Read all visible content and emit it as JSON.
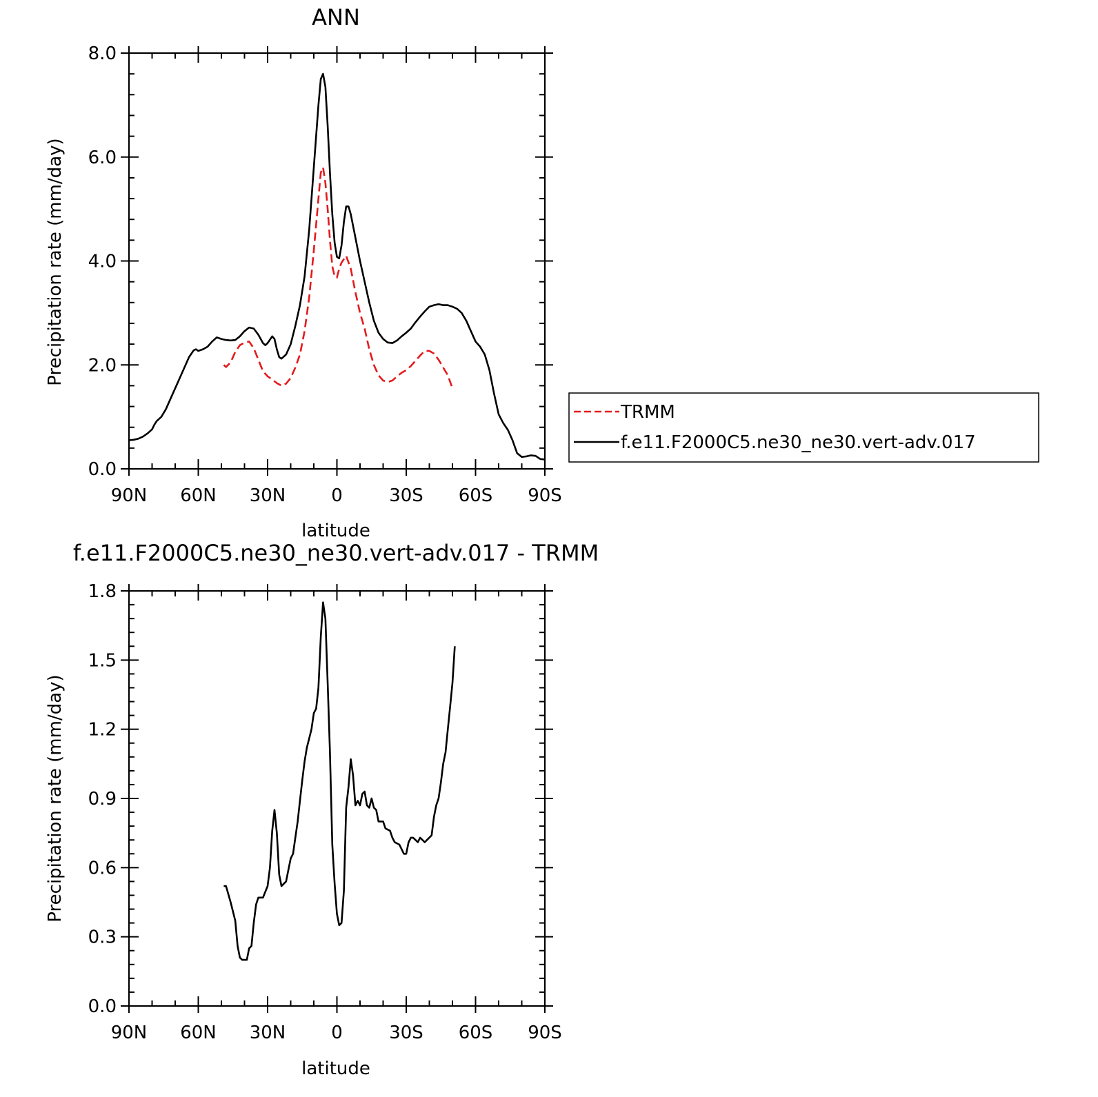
{
  "chart_data": [
    {
      "type": "line",
      "title": "ANN",
      "xlabel": "latitude",
      "ylabel": "Precipitation rate (mm/day)",
      "xlim": [
        90,
        -90
      ],
      "ylim": [
        0,
        8
      ],
      "x_ticks": [
        {
          "value": 90,
          "label": "90N"
        },
        {
          "value": 60,
          "label": "60N"
        },
        {
          "value": 30,
          "label": "30N"
        },
        {
          "value": 0,
          "label": "0"
        },
        {
          "value": -30,
          "label": "30S"
        },
        {
          "value": -60,
          "label": "60S"
        },
        {
          "value": -90,
          "label": "90S"
        }
      ],
      "y_ticks": [
        {
          "value": 0,
          "label": "0.0"
        },
        {
          "value": 2,
          "label": "2.0"
        },
        {
          "value": 4,
          "label": "4.0"
        },
        {
          "value": 6,
          "label": "6.0"
        },
        {
          "value": 8,
          "label": "8.0"
        }
      ],
      "legend": {
        "placement": "right"
      },
      "series": [
        {
          "name": "TRMM",
          "color": "#e41a1c",
          "dash": true,
          "points": [
            [
              49,
              2.0
            ],
            [
              48,
              1.96
            ],
            [
              46,
              2.05
            ],
            [
              44,
              2.25
            ],
            [
              42,
              2.38
            ],
            [
              40,
              2.43
            ],
            [
              38,
              2.45
            ],
            [
              36,
              2.32
            ],
            [
              34,
              2.1
            ],
            [
              32,
              1.88
            ],
            [
              30,
              1.78
            ],
            [
              28,
              1.72
            ],
            [
              26,
              1.65
            ],
            [
              24,
              1.6
            ],
            [
              22,
              1.64
            ],
            [
              20,
              1.75
            ],
            [
              18,
              1.95
            ],
            [
              16,
              2.2
            ],
            [
              14,
              2.65
            ],
            [
              12,
              3.3
            ],
            [
              10,
              4.2
            ],
            [
              8,
              5.2
            ],
            [
              7,
              5.7
            ],
            [
              6,
              5.8
            ],
            [
              5,
              5.5
            ],
            [
              4,
              5.0
            ],
            [
              3,
              4.4
            ],
            [
              2,
              3.9
            ],
            [
              1,
              3.7
            ],
            [
              0,
              3.68
            ],
            [
              -1,
              3.85
            ],
            [
              -2,
              3.97
            ],
            [
              -4,
              4.1
            ],
            [
              -6,
              3.85
            ],
            [
              -8,
              3.4
            ],
            [
              -10,
              3.0
            ],
            [
              -12,
              2.7
            ],
            [
              -14,
              2.3
            ],
            [
              -16,
              2.0
            ],
            [
              -18,
              1.8
            ],
            [
              -20,
              1.7
            ],
            [
              -22,
              1.67
            ],
            [
              -24,
              1.7
            ],
            [
              -26,
              1.78
            ],
            [
              -28,
              1.85
            ],
            [
              -30,
              1.9
            ],
            [
              -32,
              1.98
            ],
            [
              -34,
              2.08
            ],
            [
              -36,
              2.18
            ],
            [
              -38,
              2.27
            ],
            [
              -40,
              2.27
            ],
            [
              -42,
              2.22
            ],
            [
              -44,
              2.1
            ],
            [
              -46,
              1.95
            ],
            [
              -48,
              1.8
            ],
            [
              -50,
              1.55
            ]
          ]
        },
        {
          "name": "f.e11.F2000C5.ne30_ne30.vert-adv.017",
          "color": "#000000",
          "dash": false,
          "points": [
            [
              90,
              0.55
            ],
            [
              88,
              0.56
            ],
            [
              86,
              0.58
            ],
            [
              84,
              0.62
            ],
            [
              82,
              0.68
            ],
            [
              80,
              0.76
            ],
            [
              79,
              0.85
            ],
            [
              78,
              0.92
            ],
            [
              76,
              1.0
            ],
            [
              74,
              1.15
            ],
            [
              72,
              1.35
            ],
            [
              70,
              1.55
            ],
            [
              68,
              1.75
            ],
            [
              66,
              1.95
            ],
            [
              64,
              2.15
            ],
            [
              62,
              2.28
            ],
            [
              61,
              2.3
            ],
            [
              60,
              2.27
            ],
            [
              58,
              2.3
            ],
            [
              56,
              2.35
            ],
            [
              54,
              2.45
            ],
            [
              52,
              2.53
            ],
            [
              50,
              2.5
            ],
            [
              48,
              2.48
            ],
            [
              46,
              2.47
            ],
            [
              44,
              2.48
            ],
            [
              42,
              2.55
            ],
            [
              40,
              2.65
            ],
            [
              38,
              2.72
            ],
            [
              36,
              2.7
            ],
            [
              34,
              2.58
            ],
            [
              32,
              2.42
            ],
            [
              31,
              2.38
            ],
            [
              30,
              2.42
            ],
            [
              28,
              2.55
            ],
            [
              27,
              2.5
            ],
            [
              26,
              2.3
            ],
            [
              25,
              2.15
            ],
            [
              24,
              2.12
            ],
            [
              22,
              2.2
            ],
            [
              20,
              2.4
            ],
            [
              18,
              2.75
            ],
            [
              16,
              3.15
            ],
            [
              14,
              3.7
            ],
            [
              12,
              4.6
            ],
            [
              10,
              5.8
            ],
            [
              8,
              7.0
            ],
            [
              7,
              7.5
            ],
            [
              6,
              7.6
            ],
            [
              5,
              7.35
            ],
            [
              4,
              6.6
            ],
            [
              3,
              5.7
            ],
            [
              2,
              4.9
            ],
            [
              1,
              4.35
            ],
            [
              0,
              4.08
            ],
            [
              -1,
              4.05
            ],
            [
              -2,
              4.3
            ],
            [
              -3,
              4.75
            ],
            [
              -4,
              5.05
            ],
            [
              -5,
              5.05
            ],
            [
              -6,
              4.9
            ],
            [
              -8,
              4.45
            ],
            [
              -10,
              4.0
            ],
            [
              -12,
              3.6
            ],
            [
              -14,
              3.2
            ],
            [
              -16,
              2.85
            ],
            [
              -18,
              2.62
            ],
            [
              -20,
              2.5
            ],
            [
              -22,
              2.43
            ],
            [
              -24,
              2.42
            ],
            [
              -26,
              2.47
            ],
            [
              -28,
              2.55
            ],
            [
              -30,
              2.62
            ],
            [
              -32,
              2.7
            ],
            [
              -34,
              2.82
            ],
            [
              -36,
              2.93
            ],
            [
              -38,
              3.03
            ],
            [
              -40,
              3.12
            ],
            [
              -42,
              3.15
            ],
            [
              -44,
              3.17
            ],
            [
              -46,
              3.15
            ],
            [
              -48,
              3.15
            ],
            [
              -50,
              3.12
            ],
            [
              -52,
              3.08
            ],
            [
              -54,
              3.0
            ],
            [
              -56,
              2.85
            ],
            [
              -58,
              2.65
            ],
            [
              -60,
              2.45
            ],
            [
              -62,
              2.35
            ],
            [
              -64,
              2.2
            ],
            [
              -66,
              1.9
            ],
            [
              -68,
              1.45
            ],
            [
              -70,
              1.05
            ],
            [
              -72,
              0.88
            ],
            [
              -74,
              0.75
            ],
            [
              -76,
              0.55
            ],
            [
              -78,
              0.3
            ],
            [
              -80,
              0.23
            ],
            [
              -82,
              0.24
            ],
            [
              -84,
              0.26
            ],
            [
              -86,
              0.25
            ],
            [
              -88,
              0.19
            ],
            [
              -90,
              0.18
            ]
          ]
        }
      ]
    },
    {
      "type": "line",
      "title": "f.e11.F2000C5.ne30_ne30.vert-adv.017 - TRMM",
      "xlabel": "latitude",
      "ylabel": "Precipitation rate (mm/day)",
      "xlim": [
        90,
        -90
      ],
      "ylim": [
        0,
        1.8
      ],
      "x_ticks": [
        {
          "value": 90,
          "label": "90N"
        },
        {
          "value": 60,
          "label": "60N"
        },
        {
          "value": 30,
          "label": "30N"
        },
        {
          "value": 0,
          "label": "0"
        },
        {
          "value": -30,
          "label": "30S"
        },
        {
          "value": -60,
          "label": "60S"
        },
        {
          "value": -90,
          "label": "90S"
        }
      ],
      "y_ticks": [
        {
          "value": 0,
          "label": "0.0"
        },
        {
          "value": 0.3,
          "label": "0.3"
        },
        {
          "value": 0.6,
          "label": "0.6"
        },
        {
          "value": 0.9,
          "label": "0.9"
        },
        {
          "value": 1.2,
          "label": "1.2"
        },
        {
          "value": 1.5,
          "label": "1.5"
        },
        {
          "value": 1.8,
          "label": "1.8"
        }
      ],
      "series": [
        {
          "color": "#000000",
          "dash": false,
          "points": [
            [
              49,
              0.52
            ],
            [
              48,
              0.52
            ],
            [
              46,
              0.45
            ],
            [
              44,
              0.37
            ],
            [
              43,
              0.26
            ],
            [
              42,
              0.21
            ],
            [
              41,
              0.2
            ],
            [
              39,
              0.2
            ],
            [
              38,
              0.25
            ],
            [
              37,
              0.26
            ],
            [
              36,
              0.36
            ],
            [
              35,
              0.44
            ],
            [
              34,
              0.47
            ],
            [
              32,
              0.47
            ],
            [
              30,
              0.52
            ],
            [
              29,
              0.6
            ],
            [
              28,
              0.76
            ],
            [
              27,
              0.85
            ],
            [
              26,
              0.75
            ],
            [
              25,
              0.57
            ],
            [
              24,
              0.52
            ],
            [
              23,
              0.53
            ],
            [
              22,
              0.54
            ],
            [
              21,
              0.59
            ],
            [
              20,
              0.64
            ],
            [
              19,
              0.66
            ],
            [
              18,
              0.73
            ],
            [
              17,
              0.8
            ],
            [
              16,
              0.89
            ],
            [
              15,
              0.98
            ],
            [
              14,
              1.06
            ],
            [
              13,
              1.12
            ],
            [
              12,
              1.16
            ],
            [
              11,
              1.2
            ],
            [
              10,
              1.27
            ],
            [
              9,
              1.29
            ],
            [
              8,
              1.38
            ],
            [
              7,
              1.6
            ],
            [
              6,
              1.75
            ],
            [
              5,
              1.68
            ],
            [
              4,
              1.4
            ],
            [
              3,
              1.1
            ],
            [
              2,
              0.7
            ],
            [
              1,
              0.53
            ],
            [
              0,
              0.4
            ],
            [
              -1,
              0.35
            ],
            [
              -2,
              0.36
            ],
            [
              -3,
              0.5
            ],
            [
              -4,
              0.86
            ],
            [
              -5,
              0.95
            ],
            [
              -6,
              1.07
            ],
            [
              -7,
              1.0
            ],
            [
              -8,
              0.87
            ],
            [
              -9,
              0.89
            ],
            [
              -10,
              0.87
            ],
            [
              -11,
              0.92
            ],
            [
              -12,
              0.93
            ],
            [
              -13,
              0.87
            ],
            [
              -14,
              0.86
            ],
            [
              -15,
              0.9
            ],
            [
              -16,
              0.86
            ],
            [
              -17,
              0.85
            ],
            [
              -18,
              0.8
            ],
            [
              -20,
              0.8
            ],
            [
              -21,
              0.77
            ],
            [
              -23,
              0.76
            ],
            [
              -24,
              0.73
            ],
            [
              -25,
              0.71
            ],
            [
              -27,
              0.7
            ],
            [
              -28,
              0.68
            ],
            [
              -29,
              0.66
            ],
            [
              -30,
              0.66
            ],
            [
              -31,
              0.71
            ],
            [
              -32,
              0.73
            ],
            [
              -33,
              0.73
            ],
            [
              -34,
              0.72
            ],
            [
              -35,
              0.71
            ],
            [
              -36,
              0.73
            ],
            [
              -37,
              0.72
            ],
            [
              -38,
              0.71
            ],
            [
              -39,
              0.72
            ],
            [
              -41,
              0.74
            ],
            [
              -42,
              0.82
            ],
            [
              -43,
              0.87
            ],
            [
              -44,
              0.9
            ],
            [
              -45,
              0.97
            ],
            [
              -46,
              1.05
            ],
            [
              -47,
              1.1
            ],
            [
              -48,
              1.2
            ],
            [
              -49,
              1.3
            ],
            [
              -50,
              1.4
            ],
            [
              -51,
              1.56
            ]
          ]
        }
      ]
    }
  ]
}
